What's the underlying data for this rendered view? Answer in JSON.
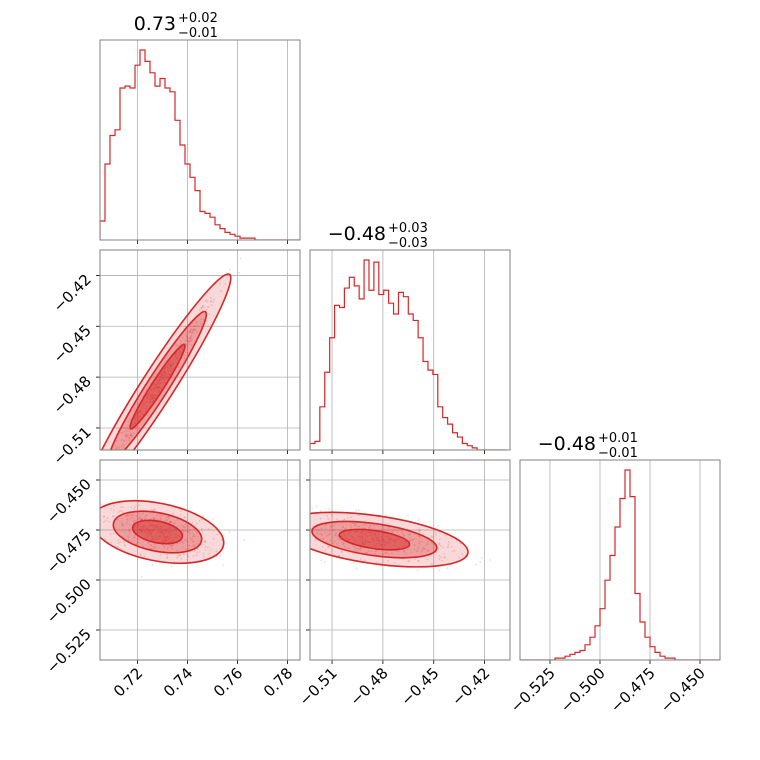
{
  "chart_data": {
    "type": "corner",
    "color": "#d62728",
    "grid": true,
    "parameters": [
      {
        "range": [
          0.705,
          0.785
        ],
        "ticks": [
          0.72,
          0.74,
          0.76,
          0.78
        ],
        "tick_labels": [
          "0.72",
          "0.74",
          "0.76",
          "0.78"
        ]
      },
      {
        "range": [
          -0.523,
          -0.405
        ],
        "ticks": [
          -0.51,
          -0.48,
          -0.45,
          -0.42
        ],
        "tick_labels": [
          "−0.51",
          "−0.48",
          "−0.45",
          "−0.42"
        ]
      },
      {
        "range": [
          -0.54,
          -0.44
        ],
        "ticks": [
          -0.525,
          -0.5,
          -0.475,
          -0.45
        ],
        "tick_labels": [
          "−0.525",
          "−0.500",
          "−0.475",
          "−0.450"
        ]
      }
    ],
    "titles": [
      {
        "main": "0.73",
        "plus": "+0.02",
        "minus": "−0.01"
      },
      {
        "main": "−0.48",
        "plus": "+0.03",
        "minus": "−0.03"
      },
      {
        "main": "−0.48",
        "plus": "+0.01",
        "minus": "−0.01"
      }
    ],
    "histograms": [
      {
        "param": 0,
        "bin_start": 0.705,
        "bin_width": 0.002,
        "counts": [
          10,
          40,
          55,
          58,
          80,
          81,
          80,
          92,
          100,
          94,
          88,
          81,
          85,
          80,
          78,
          63,
          50,
          40,
          33,
          26,
          15,
          14,
          12,
          8,
          6,
          4,
          3,
          2,
          1,
          1,
          1,
          0,
          0,
          0,
          0,
          0,
          0,
          0,
          0,
          0
        ]
      },
      {
        "param": 1,
        "bin_start": -0.523,
        "bin_width": 0.0029,
        "counts": [
          3,
          4,
          20,
          36,
          52,
          67,
          66,
          75,
          80,
          76,
          70,
          88,
          74,
          87,
          72,
          74,
          68,
          63,
          73,
          71,
          63,
          60,
          52,
          41,
          37,
          35,
          20,
          15,
          12,
          8,
          6,
          3,
          2,
          1,
          0,
          0,
          0,
          0,
          0,
          0
        ]
      },
      {
        "param": 2,
        "bin_start": -0.54,
        "bin_width": 0.0025,
        "counts": [
          0,
          0,
          0,
          0,
          0,
          0,
          0,
          1,
          1,
          2,
          3,
          4,
          5,
          8,
          12,
          18,
          27,
          42,
          55,
          70,
          85,
          100,
          86,
          35,
          20,
          12,
          7,
          4,
          2,
          1,
          1,
          0,
          0,
          0,
          0,
          0,
          0,
          0,
          0,
          0
        ]
      }
    ],
    "correlations": [
      {
        "x_param": 0,
        "y_param": 1,
        "slope": 2.3,
        "intercept": -2.16,
        "sd_x": 0.012,
        "sd_y": 0.004
      },
      {
        "x_param": 0,
        "y_param": 2,
        "slope": -0.25,
        "intercept": -0.294,
        "sd_x": 0.011,
        "sd_y": 0.006
      },
      {
        "x_param": 1,
        "y_param": 2,
        "slope": -0.12,
        "intercept": -0.538,
        "sd_x": 0.023,
        "sd_y": 0.005
      }
    ]
  }
}
